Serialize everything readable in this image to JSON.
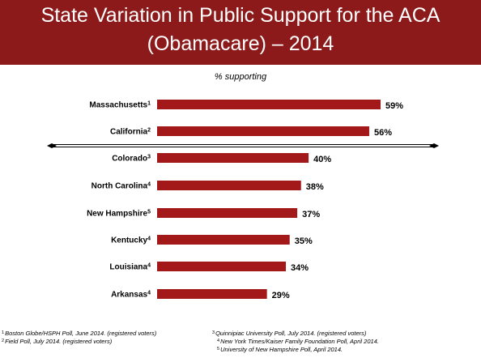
{
  "title_line1": "State Variation in Public Support for the ACA",
  "title_line2": "(Obamacare) – 2014",
  "colors": {
    "header_bg": "#8c1a1a",
    "bar": "#a31818",
    "text": "#000000"
  },
  "chart_data": {
    "type": "bar",
    "orientation": "horizontal",
    "subtitle": "% supporting",
    "categories": [
      "Massachusetts",
      "California",
      "Colorado",
      "North Carolina",
      "New Hampshire",
      "Kentucky",
      "Louisiana",
      "Arkansas"
    ],
    "footnote_marks": [
      "1",
      "2",
      "3",
      "4",
      "5",
      "4",
      "4",
      "4"
    ],
    "values": [
      59,
      56,
      40,
      38,
      37,
      35,
      34,
      29
    ],
    "value_labels": [
      "59%",
      "56%",
      "40%",
      "38%",
      "37%",
      "35%",
      "34%",
      "29%"
    ],
    "xlim": [
      0,
      59
    ],
    "divider_after_index": 1
  },
  "footnotes": [
    {
      "mark": "1",
      "text": "Boston Globe/HSPH Poll, June 2014. (registered voters)"
    },
    {
      "mark": "2",
      "text": "Field Poll, July 2014. (registered voters)"
    },
    {
      "mark": "3",
      "text": "Quinnipiac University Poll, July 2014. (registered voters)"
    },
    {
      "mark": "4",
      "text": "New York Times/Kaiser Family Foundation Poll, April 2014."
    },
    {
      "mark": "5",
      "text": "University of New Hampshire Poll, April 2014."
    }
  ]
}
